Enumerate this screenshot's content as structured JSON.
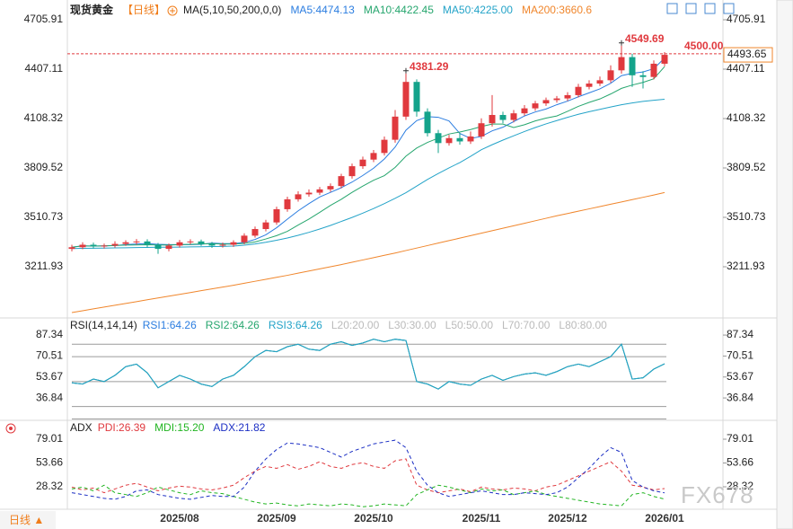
{
  "header": {
    "period_button": "日线 ▲",
    "watermark": "FX678"
  },
  "chart_data": [
    {
      "type": "candlestick",
      "title": "现货黄金",
      "period": "【日线】",
      "indicator": "MA(5,10,50,200,0,0)",
      "up_color": "#e0393e",
      "down_color": "#14a38b",
      "ylim": [
        2913.14,
        4825.43
      ],
      "yticks": [
        4705.91,
        4407.11,
        4108.32,
        3809.52,
        3510.73,
        3211.93
      ],
      "categories": [
        null,
        null,
        null,
        null,
        null,
        null,
        null,
        null,
        null,
        null,
        "2025/08",
        null,
        null,
        null,
        null,
        null,
        null,
        null,
        null,
        "2025/09",
        null,
        null,
        null,
        null,
        null,
        null,
        null,
        null,
        "2025/10",
        null,
        null,
        null,
        null,
        null,
        null,
        null,
        null,
        null,
        "2025/11",
        null,
        null,
        null,
        null,
        null,
        null,
        null,
        "2025/12",
        null,
        null,
        null,
        null,
        null,
        null,
        null,
        null,
        "2026/01"
      ],
      "open": [
        3320,
        3330,
        3345,
        3335,
        3340,
        3350,
        3360,
        3365,
        3345,
        3320,
        3340,
        3360,
        3365,
        3350,
        3340,
        3345,
        3360,
        3400,
        3440,
        3480,
        3560,
        3620,
        3650,
        3660,
        3680,
        3700,
        3760,
        3820,
        3860,
        3900,
        3980,
        4120,
        4330,
        4150,
        4020,
        3960,
        3990,
        3970,
        4000,
        4080,
        4130,
        4100,
        4140,
        4170,
        4200,
        4220,
        4230,
        4250,
        4300,
        4320,
        4340,
        4400,
        4480,
        4370,
        4360,
        4440
      ],
      "high": [
        3345,
        3360,
        3358,
        3352,
        3366,
        3372,
        3380,
        3378,
        3356,
        3352,
        3374,
        3378,
        3376,
        3362,
        3358,
        3372,
        3414,
        3455,
        3496,
        3575,
        3636,
        3668,
        3680,
        3695,
        3716,
        3774,
        3836,
        3878,
        3918,
        4000,
        4160,
        4381.29,
        4345,
        4170,
        4040,
        4010,
        4020,
        4030,
        4110,
        4250,
        4150,
        4160,
        4190,
        4215,
        4235,
        4245,
        4268,
        4318,
        4340,
        4362,
        4430,
        4549.69,
        4500,
        4395,
        4460,
        4510
      ],
      "low": [
        3305,
        3318,
        3322,
        3322,
        3328,
        3338,
        3346,
        3330,
        3290,
        3305,
        3328,
        3348,
        3338,
        3326,
        3328,
        3332,
        3348,
        3388,
        3426,
        3466,
        3545,
        3606,
        3636,
        3646,
        3665,
        3686,
        3745,
        3804,
        3845,
        3885,
        3962,
        4100,
        4120,
        4000,
        3900,
        3945,
        3950,
        3955,
        3985,
        4060,
        4080,
        4085,
        4125,
        4155,
        4185,
        4205,
        4215,
        4236,
        4285,
        4305,
        4325,
        4380,
        4300,
        4290,
        4345,
        4425
      ],
      "close": [
        3330,
        3345,
        3335,
        3340,
        3350,
        3360,
        3365,
        3345,
        3320,
        3340,
        3360,
        3365,
        3350,
        3340,
        3345,
        3360,
        3400,
        3440,
        3480,
        3560,
        3620,
        3650,
        3660,
        3680,
        3700,
        3760,
        3820,
        3860,
        3900,
        3980,
        4120,
        4330,
        4150,
        4020,
        3960,
        3990,
        3970,
        4000,
        4080,
        4130,
        4100,
        4140,
        4170,
        4200,
        4220,
        4230,
        4250,
        4300,
        4320,
        4340,
        4400,
        4480,
        4370,
        4360,
        4440,
        4493.65
      ],
      "high_labels": [
        null,
        null,
        null,
        null,
        null,
        null,
        null,
        null,
        null,
        null,
        null,
        null,
        null,
        null,
        null,
        null,
        null,
        null,
        null,
        null,
        null,
        null,
        null,
        null,
        null,
        null,
        null,
        null,
        null,
        null,
        null,
        "4381.29",
        null,
        null,
        null,
        null,
        null,
        null,
        null,
        null,
        null,
        null,
        null,
        null,
        null,
        null,
        null,
        null,
        null,
        null,
        null,
        "4549.69",
        null,
        null,
        null,
        null
      ],
      "price_line": {
        "value": 4500,
        "label": "4500.00",
        "color": "#e0393e"
      },
      "series": [
        {
          "name": "MA5:4474.13",
          "color": "#2b7de0",
          "values": [
            3330,
            3338,
            3337,
            3338,
            3340,
            3346,
            3350,
            3352,
            3348,
            3346,
            3346,
            3346,
            3348,
            3355,
            3352,
            3352,
            3359,
            3377,
            3405,
            3448,
            3500,
            3550,
            3594,
            3634,
            3662,
            3690,
            3724,
            3764,
            3808,
            3864,
            3936,
            4038,
            4096,
            4120,
            4116,
            4094,
            4018,
            3988,
            4000,
            4034,
            4056,
            4090,
            4124,
            4148,
            4166,
            4192,
            4214,
            4240,
            4264,
            4288,
            4322,
            4368,
            4382,
            4390,
            4410,
            4474.13
          ]
        },
        {
          "name": "MA10:4422.45",
          "color": "#26a66e",
          "values": [
            3330,
            3338,
            3337,
            3338,
            3340,
            3343,
            3344,
            3345,
            3344,
            3343,
            3346,
            3348,
            3350,
            3352,
            3349,
            3349,
            3353,
            3362,
            3380,
            3400,
            3426,
            3464,
            3500,
            3541,
            3583,
            3620,
            3662,
            3700,
            3735,
            3763,
            3813,
            3881,
            3930,
            3964,
            3990,
            4015,
            4027,
            4042,
            4060,
            4075,
            4075,
            4054,
            4071,
            4094,
            4111,
            4124,
            4152,
            4182,
            4206,
            4227,
            4257,
            4291,
            4311,
            4327,
            4349,
            4422.45
          ]
        },
        {
          "name": "MA50:4225.00",
          "color": "#23a3c8",
          "values": [
            3322,
            3323,
            3324,
            3325,
            3326,
            3327,
            3328,
            3329,
            3330,
            3330,
            3331,
            3332,
            3333,
            3334,
            3335,
            3337,
            3342,
            3350,
            3360,
            3372,
            3386,
            3402,
            3420,
            3440,
            3462,
            3486,
            3510,
            3536,
            3564,
            3594,
            3626,
            3660,
            3700,
            3740,
            3776,
            3810,
            3842,
            3880,
            3920,
            3950,
            3978,
            4004,
            4030,
            4054,
            4076,
            4096,
            4116,
            4134,
            4150,
            4164,
            4178,
            4192,
            4203,
            4212,
            4219,
            4225
          ]
        },
        {
          "name": "MA200:3660.6",
          "color": "#f0862c",
          "values": [
            2935,
            2946,
            2957,
            2968,
            2979,
            2990,
            3001,
            3012,
            3023,
            3034,
            3045,
            3056,
            3067,
            3078,
            3089,
            3100,
            3112,
            3124,
            3136,
            3148,
            3160,
            3173,
            3186,
            3199,
            3212,
            3225,
            3239,
            3253,
            3267,
            3281,
            3295,
            3310,
            3325,
            3340,
            3355,
            3370,
            3385,
            3400,
            3415,
            3430,
            3445,
            3460,
            3475,
            3490,
            3505,
            3520,
            3534,
            3548,
            3562,
            3576,
            3590,
            3604,
            3618,
            3632,
            3646,
            3660.6
          ]
        }
      ]
    },
    {
      "type": "line",
      "title": "RSI(14,14,14)",
      "dashed": false,
      "ylim": [
        19.6,
        98.2
      ],
      "yticks": [
        87.34,
        70.51,
        53.67,
        36.84
      ],
      "levels": [
        {
          "value": 20,
          "label": "L20:20.00"
        },
        {
          "value": 30,
          "label": "L30:30.00"
        },
        {
          "value": 50,
          "label": "L50:50.00"
        },
        {
          "value": 70,
          "label": "L70:70.00"
        },
        {
          "value": 80,
          "label": "L80:80.00"
        }
      ],
      "series": [
        {
          "name": "RSI1:64.26",
          "color": "#2b7de0",
          "values": [
            49,
            48,
            52,
            50,
            55,
            62,
            64,
            57,
            45,
            50,
            55,
            52,
            48,
            46,
            52,
            55,
            62,
            70,
            75,
            74,
            78,
            80,
            76,
            75,
            80,
            82,
            79,
            81,
            84,
            82,
            84,
            83,
            50,
            48,
            44,
            50,
            48,
            47,
            52,
            55,
            51,
            54,
            56,
            57,
            55,
            58,
            62,
            64,
            62,
            66,
            70,
            80,
            52,
            53,
            60,
            64.26
          ]
        },
        {
          "name": "RSI2:64.26",
          "color": "#26a66e",
          "values": [
            49,
            48,
            52,
            50,
            55,
            62,
            64,
            57,
            45,
            50,
            55,
            52,
            48,
            46,
            52,
            55,
            62,
            70,
            75,
            74,
            78,
            80,
            76,
            75,
            80,
            82,
            79,
            81,
            84,
            82,
            84,
            83,
            50,
            48,
            44,
            50,
            48,
            47,
            52,
            55,
            51,
            54,
            56,
            57,
            55,
            58,
            62,
            64,
            62,
            66,
            70,
            80,
            52,
            53,
            60,
            64.26
          ]
        },
        {
          "name": "RSI3:64.26",
          "color": "#23a3c8",
          "values": [
            49,
            48,
            52,
            50,
            55,
            62,
            64,
            57,
            45,
            50,
            55,
            52,
            48,
            46,
            52,
            55,
            62,
            70,
            75,
            74,
            78,
            80,
            76,
            75,
            80,
            82,
            79,
            81,
            84,
            82,
            84,
            83,
            50,
            48,
            44,
            50,
            48,
            47,
            52,
            55,
            51,
            54,
            56,
            57,
            55,
            58,
            62,
            64,
            62,
            66,
            70,
            80,
            52,
            53,
            60,
            64.26
          ]
        }
      ]
    },
    {
      "type": "line",
      "title": "ADX",
      "dashed": true,
      "ylim": [
        6.3,
        95.3
      ],
      "yticks": [
        79.01,
        53.66,
        28.32
      ],
      "series": [
        {
          "name": "PDI:26.39",
          "color": "#e0393e",
          "values": [
            28,
            25,
            27,
            22,
            26,
            30,
            32,
            28,
            24,
            27,
            29,
            28,
            26,
            25,
            27,
            30,
            38,
            45,
            50,
            48,
            52,
            47,
            50,
            55,
            50,
            48,
            52,
            54,
            50,
            48,
            56,
            58,
            30,
            25,
            22,
            24,
            26,
            23,
            28,
            26,
            25,
            27,
            26,
            24,
            28,
            30,
            35,
            40,
            45,
            50,
            55,
            45,
            30,
            28,
            25,
            26.39
          ]
        },
        {
          "name": "MDI:15.20",
          "color": "#22b522",
          "values": [
            26,
            28,
            24,
            30,
            22,
            20,
            18,
            22,
            28,
            25,
            22,
            20,
            24,
            22,
            21,
            18,
            15,
            12,
            10,
            11,
            9,
            8,
            10,
            9,
            8,
            10,
            9,
            7,
            8,
            10,
            9,
            8,
            20,
            25,
            30,
            28,
            25,
            22,
            26,
            24,
            25,
            20,
            22,
            24,
            20,
            18,
            16,
            14,
            12,
            10,
            9,
            8,
            20,
            22,
            18,
            15.2
          ]
        },
        {
          "name": "ADX:21.82",
          "color": "#1c2fc4",
          "values": [
            22,
            20,
            18,
            16,
            15,
            18,
            24,
            25,
            20,
            18,
            16,
            15,
            17,
            19,
            18,
            18,
            28,
            45,
            58,
            68,
            75,
            74,
            72,
            70,
            65,
            60,
            66,
            70,
            74,
            76,
            78,
            70,
            45,
            30,
            22,
            18,
            20,
            22,
            24,
            22,
            20,
            20,
            22,
            21,
            20,
            22,
            28,
            38,
            48,
            60,
            70,
            65,
            35,
            28,
            24,
            21.82
          ]
        }
      ]
    }
  ]
}
